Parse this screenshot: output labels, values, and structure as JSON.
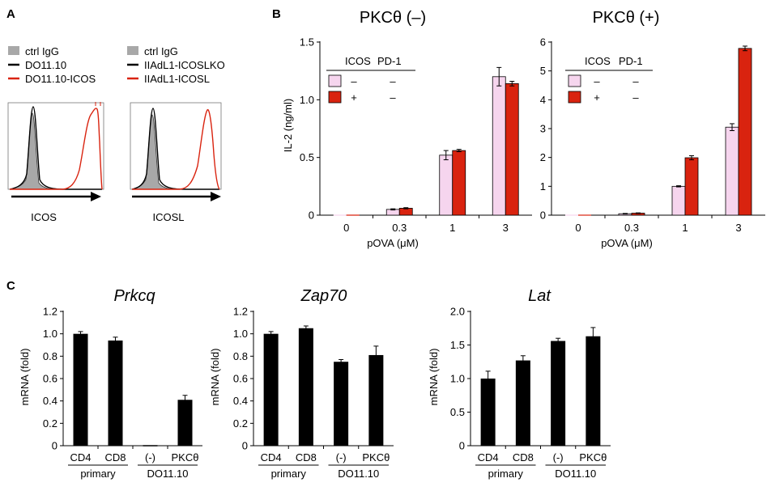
{
  "panels": {
    "a": "A",
    "b": "B",
    "c": "C"
  },
  "flow": [
    {
      "legend": [
        "ctrl IgG",
        "DO11.10",
        "DO11.10-ICOS"
      ],
      "xlabel": "ICOS"
    },
    {
      "legend": [
        "ctrl IgG",
        "IIAdL1-ICOSLKO",
        "IIAdL1-ICOSL"
      ],
      "xlabel": "ICOSL"
    }
  ],
  "colors": {
    "pink": "#f6d5ee",
    "red": "#d9230f",
    "black": "#000000",
    "gray": "#a8a8a8"
  },
  "chart_data": [
    {
      "type": "bar",
      "title": "PKCθ (–)",
      "categories": [
        "0",
        "0.3",
        "1",
        "3"
      ],
      "xlabel": "pOVA (μM)",
      "ylabel": "IL-2 (ng/ml)",
      "ylim": [
        0,
        1.5
      ],
      "yticks": [
        "0",
        "0.5",
        "1.0",
        "1.5"
      ],
      "ytick_values": [
        0,
        0.5,
        1.0,
        1.5
      ],
      "legend_header": [
        "ICOS",
        "PD-1"
      ],
      "legend_rows": [
        [
          "–",
          "–"
        ],
        [
          "+",
          "–"
        ]
      ],
      "series": [
        {
          "name": "ICOS – / PD-1 –",
          "values": [
            0,
            0.05,
            0.52,
            1.2
          ],
          "errors": [
            0,
            0.005,
            0.04,
            0.08
          ]
        },
        {
          "name": "ICOS + / PD-1 –",
          "values": [
            0,
            0.06,
            0.56,
            1.14
          ],
          "errors": [
            0,
            0.005,
            0.01,
            0.02
          ]
        }
      ]
    },
    {
      "type": "bar",
      "title": "PKCθ (+)",
      "categories": [
        "0",
        "0.3",
        "1",
        "3"
      ],
      "xlabel": "pOVA (μM)",
      "ylabel": "",
      "ylim": [
        0,
        6
      ],
      "yticks": [
        "0",
        "1",
        "2",
        "3",
        "4",
        "5",
        "6"
      ],
      "ytick_values": [
        0,
        1,
        2,
        3,
        4,
        5,
        6
      ],
      "legend_header": [
        "ICOS",
        "PD-1"
      ],
      "legend_rows": [
        [
          "–",
          "–"
        ],
        [
          "+",
          "–"
        ]
      ],
      "series": [
        {
          "name": "ICOS – / PD-1 –",
          "values": [
            0,
            0.05,
            1.0,
            3.05
          ],
          "errors": [
            0,
            0.01,
            0.02,
            0.12
          ]
        },
        {
          "name": "ICOS + / PD-1 –",
          "values": [
            0,
            0.07,
            1.99,
            5.78
          ],
          "errors": [
            0,
            0.01,
            0.07,
            0.08
          ]
        }
      ]
    },
    {
      "type": "bar",
      "title": "Prkcq",
      "categories": [
        "CD4",
        "CD8",
        "(-)",
        "PKCθ"
      ],
      "groups": [
        "primary",
        "DO11.10"
      ],
      "ylabel": "mRNA (fold)",
      "ylim": [
        0,
        1.2
      ],
      "yticks": [
        "0",
        "0.2",
        "0.4",
        "0.6",
        "0.8",
        "1.0",
        "1.2"
      ],
      "ytick_values": [
        0,
        0.2,
        0.4,
        0.6,
        0.8,
        1.0,
        1.2
      ],
      "values": [
        1.0,
        0.94,
        0,
        0.41
      ],
      "errors": [
        0.02,
        0.03,
        0,
        0.04
      ]
    },
    {
      "type": "bar",
      "title": "Zap70",
      "categories": [
        "CD4",
        "CD8",
        "(-)",
        "PKCθ"
      ],
      "groups": [
        "primary",
        "DO11.10"
      ],
      "ylabel": "mRNA (fold)",
      "ylim": [
        0,
        1.2
      ],
      "yticks": [
        "0",
        "0.2",
        "0.4",
        "0.6",
        "0.8",
        "1.0",
        "1.2"
      ],
      "ytick_values": [
        0,
        0.2,
        0.4,
        0.6,
        0.8,
        1.0,
        1.2
      ],
      "values": [
        1.0,
        1.05,
        0.75,
        0.81
      ],
      "errors": [
        0.02,
        0.02,
        0.02,
        0.08
      ]
    },
    {
      "type": "bar",
      "title": "Lat",
      "categories": [
        "CD4",
        "CD8",
        "(-)",
        "PKCθ"
      ],
      "groups": [
        "primary",
        "DO11.10"
      ],
      "ylabel": "mRNA (fold)",
      "ylim": [
        0,
        2.0
      ],
      "yticks": [
        "0",
        "0.5",
        "1.0",
        "1.5",
        "2.0"
      ],
      "ytick_values": [
        0,
        0.5,
        1.0,
        1.5,
        2.0
      ],
      "values": [
        1.0,
        1.27,
        1.56,
        1.63
      ],
      "errors": [
        0.11,
        0.07,
        0.04,
        0.13
      ]
    }
  ]
}
